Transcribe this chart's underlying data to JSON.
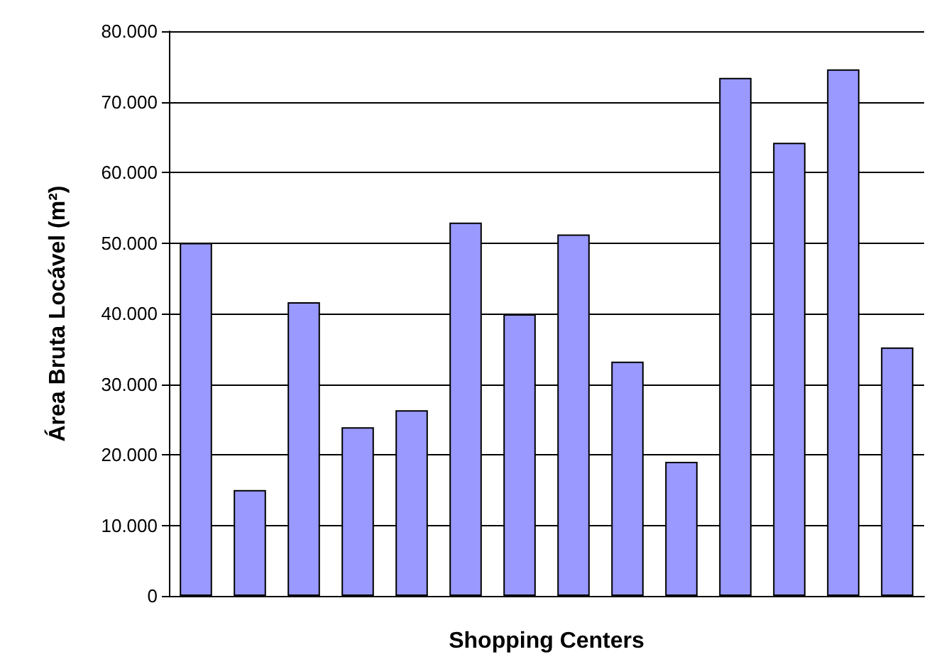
{
  "chart_data": {
    "type": "bar",
    "xlabel": "Shopping Centers",
    "ylabel": "Área Bruta Locável (m²)",
    "categories": [
      null,
      null,
      null,
      null,
      null,
      null,
      null,
      null,
      null,
      null,
      null,
      null,
      null,
      null
    ],
    "values": [
      50000,
      15000,
      41600,
      23900,
      26300,
      52900,
      39900,
      51200,
      33200,
      19000,
      73400,
      64200,
      74600,
      35200
    ],
    "color": "#9999ff",
    "ylim": [
      0,
      80000
    ],
    "yticks": [
      0,
      {
        "value": 10000,
        "label": "10.000"
      },
      {
        "value": 20000,
        "label": "20.000"
      },
      {
        "value": 30000,
        "label": "30.000"
      },
      {
        "value": 40000,
        "label": "40.000"
      },
      {
        "value": 50000,
        "label": "50.000"
      },
      {
        "value": 60000,
        "label": "60.000"
      },
      {
        "value": 70000,
        "label": "70.000"
      },
      {
        "value": 80000,
        "label": "80.000"
      }
    ],
    "grid": "y"
  }
}
